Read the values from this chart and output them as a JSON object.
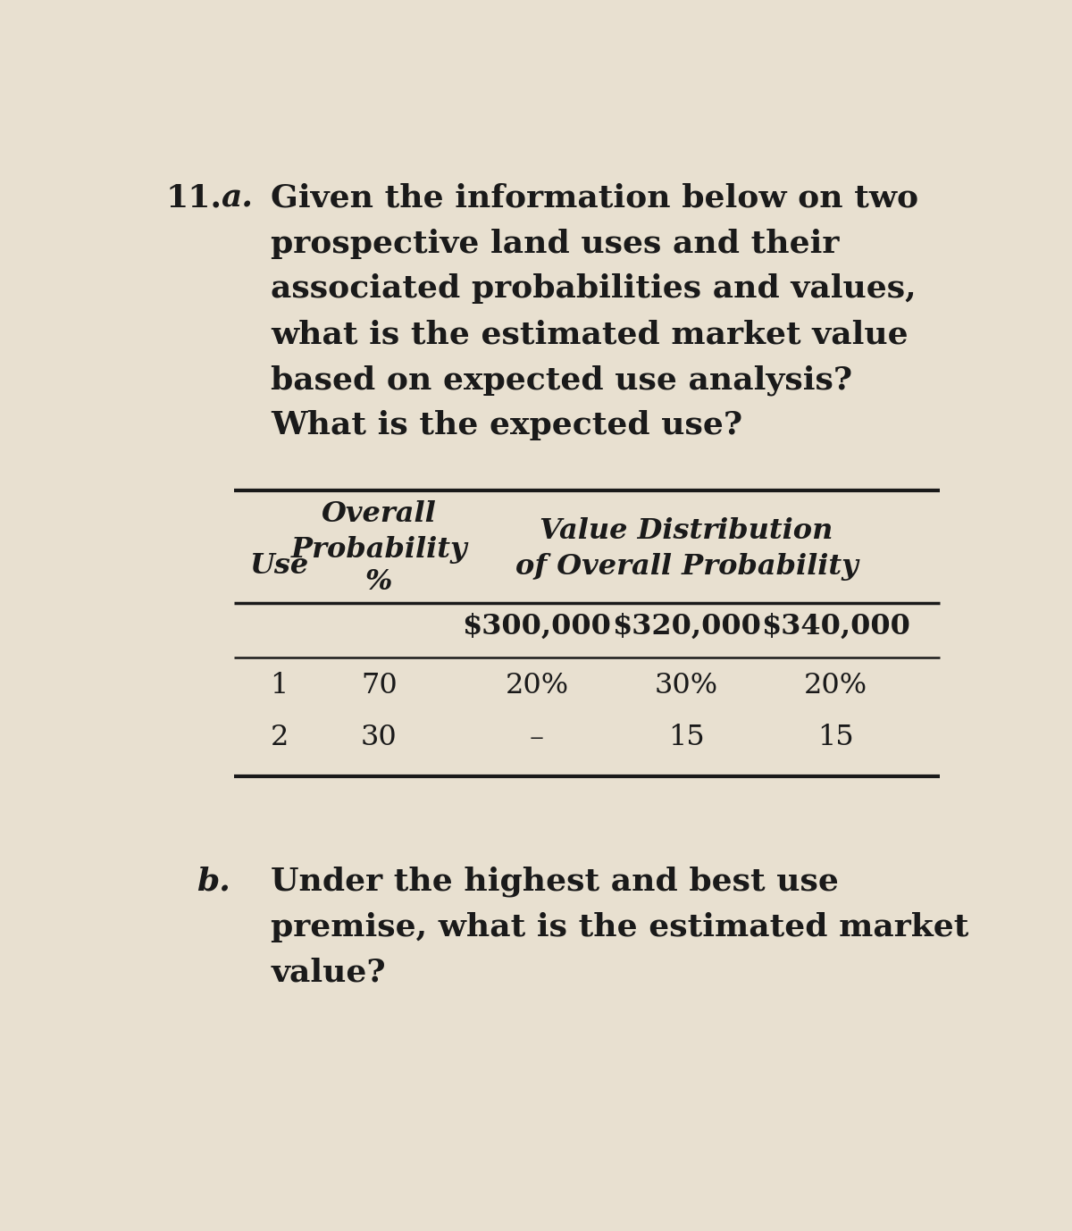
{
  "background_color": "#e8e0d0",
  "text_color": "#1a1a1a",
  "title_number": "11.",
  "title_letter_a": "a.",
  "title_text_lines": [
    "Given the information below on two",
    "prospective land uses and their",
    "associated probabilities and values,",
    "what is the estimated market value",
    "based on expected use analysis?",
    "What is the expected use?"
  ],
  "header_col1": "Use",
  "header_col2_line1": "Overall",
  "header_col2_line2": "Probability",
  "header_col2_line3": "%",
  "header_col3_line1": "Value Distribution",
  "header_col3_line2": "of Overall Probability",
  "subheader_v1": "$300,000",
  "subheader_v2": "$320,000",
  "subheader_v3": "$340,000",
  "row1": {
    "use": "1",
    "prob": "70",
    "v1": "20%",
    "v2": "30%",
    "v3": "20%"
  },
  "row2": {
    "use": "2",
    "prob": "30",
    "v1": "–",
    "v2": "15",
    "v3": "15"
  },
  "part_b_letter": "b.",
  "part_b_lines": [
    "Under the highest and best use",
    "premise, what is the estimated market",
    "value?"
  ]
}
